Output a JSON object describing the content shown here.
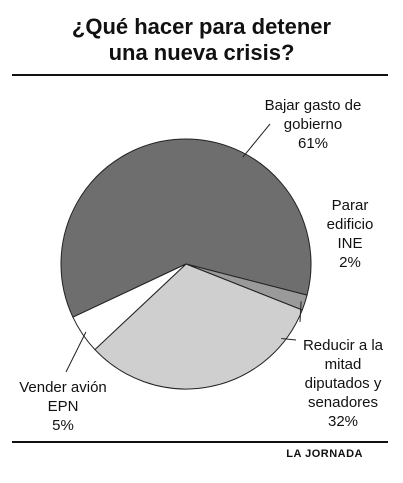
{
  "title_line1": "¿Qué hacer para detener",
  "title_line2": "una nueva crisis?",
  "credit": "LA JORNADA",
  "colors": {
    "slice1": "#6e6e6e",
    "slice2": "#9a9a9a",
    "slice3": "#cfcfcf",
    "slice4": "#ffffff",
    "stroke": "#222222"
  },
  "chart_data": {
    "type": "pie",
    "slices": [
      {
        "label": [
          "Bajar gasto de",
          "gobierno"
        ],
        "value": 61,
        "value_label": "61%"
      },
      {
        "label": [
          "Parar",
          "edificio",
          "INE"
        ],
        "value": 2,
        "value_label": "2%"
      },
      {
        "label": [
          "Reducir a la",
          "mitad",
          "diputados y",
          "senadores"
        ],
        "value": 32,
        "value_label": "32%"
      },
      {
        "label": [
          "Vender avión",
          "EPN"
        ],
        "value": 5,
        "value_label": "5%"
      }
    ]
  }
}
